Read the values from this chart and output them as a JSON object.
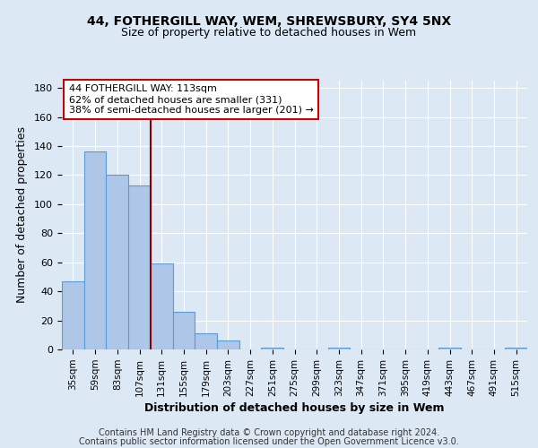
{
  "title1": "44, FOTHERGILL WAY, WEM, SHREWSBURY, SY4 5NX",
  "title2": "Size of property relative to detached houses in Wem",
  "xlabel": "Distribution of detached houses by size in Wem",
  "ylabel": "Number of detached properties",
  "categories": [
    "35sqm",
    "59sqm",
    "83sqm",
    "107sqm",
    "131sqm",
    "155sqm",
    "179sqm",
    "203sqm",
    "227sqm",
    "251sqm",
    "275sqm",
    "299sqm",
    "323sqm",
    "347sqm",
    "371sqm",
    "395sqm",
    "419sqm",
    "443sqm",
    "467sqm",
    "491sqm",
    "515sqm"
  ],
  "values": [
    47,
    136,
    120,
    113,
    59,
    26,
    11,
    6,
    0,
    1,
    0,
    0,
    1,
    0,
    0,
    0,
    0,
    1,
    0,
    0,
    1
  ],
  "bar_color": "#aec6e8",
  "bar_edge_color": "#5b9bd5",
  "subject_line_color": "#8b0000",
  "annotation_box_text": "44 FOTHERGILL WAY: 113sqm\n62% of detached houses are smaller (331)\n38% of semi-detached houses are larger (201) →",
  "annotation_box_color": "#cc0000",
  "footer_line1": "Contains HM Land Registry data © Crown copyright and database right 2024.",
  "footer_line2": "Contains public sector information licensed under the Open Government Licence v3.0.",
  "ylim": [
    0,
    185
  ],
  "title1_fontsize": 10,
  "title2_fontsize": 9,
  "ann_fontsize": 8,
  "background_color": "#dce9f5",
  "plot_bg_color": "#dce9f5"
}
